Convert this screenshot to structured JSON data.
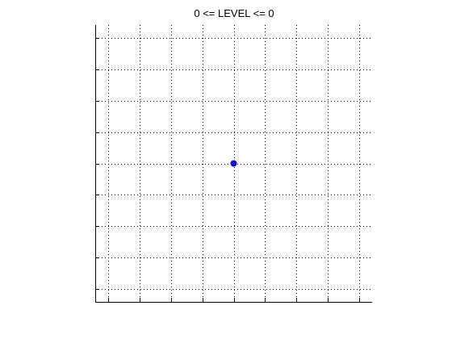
{
  "chart_data": {
    "type": "scatter",
    "title": "0 <= LEVEL <= 0",
    "xlabel": "",
    "ylabel": "",
    "x_ticks": [
      -4,
      -3,
      -2,
      -1,
      0,
      1,
      2,
      3,
      4
    ],
    "y_ticks": [
      -4,
      -3,
      -2,
      -1,
      0,
      1,
      2,
      3,
      4
    ],
    "xlim": [
      -4.4,
      4.4
    ],
    "ylim": [
      -4.4,
      4.4
    ],
    "grid": true,
    "tick_labels_visible": false,
    "series": [
      {
        "points": [
          {
            "x": 0,
            "y": 0
          }
        ],
        "color": "#0000ff"
      }
    ]
  }
}
